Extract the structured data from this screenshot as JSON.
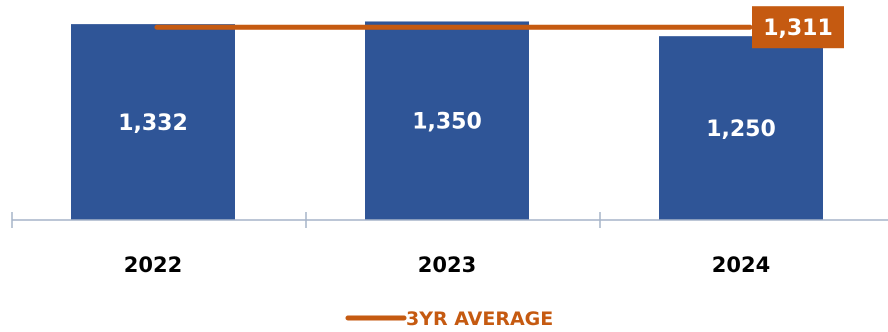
{
  "chart_data": {
    "type": "bar",
    "categories": [
      "2022",
      "2023",
      "2024"
    ],
    "values": [
      1332,
      1350,
      1250
    ],
    "value_labels": [
      "1,332",
      "1,350",
      "1,250"
    ],
    "average": {
      "name": "3YR AVERAGE",
      "value": 1311,
      "label": "1,311"
    },
    "ylim": [
      0,
      1360
    ],
    "grid": false,
    "legend_position": "bottom-center",
    "colors": {
      "bar": "#2f5597",
      "bar_label": "#ffffff",
      "average_line": "#c55a11",
      "average_badge_text": "#ffffff",
      "axis": "#a6b4c8",
      "category_label": "#000000"
    }
  }
}
